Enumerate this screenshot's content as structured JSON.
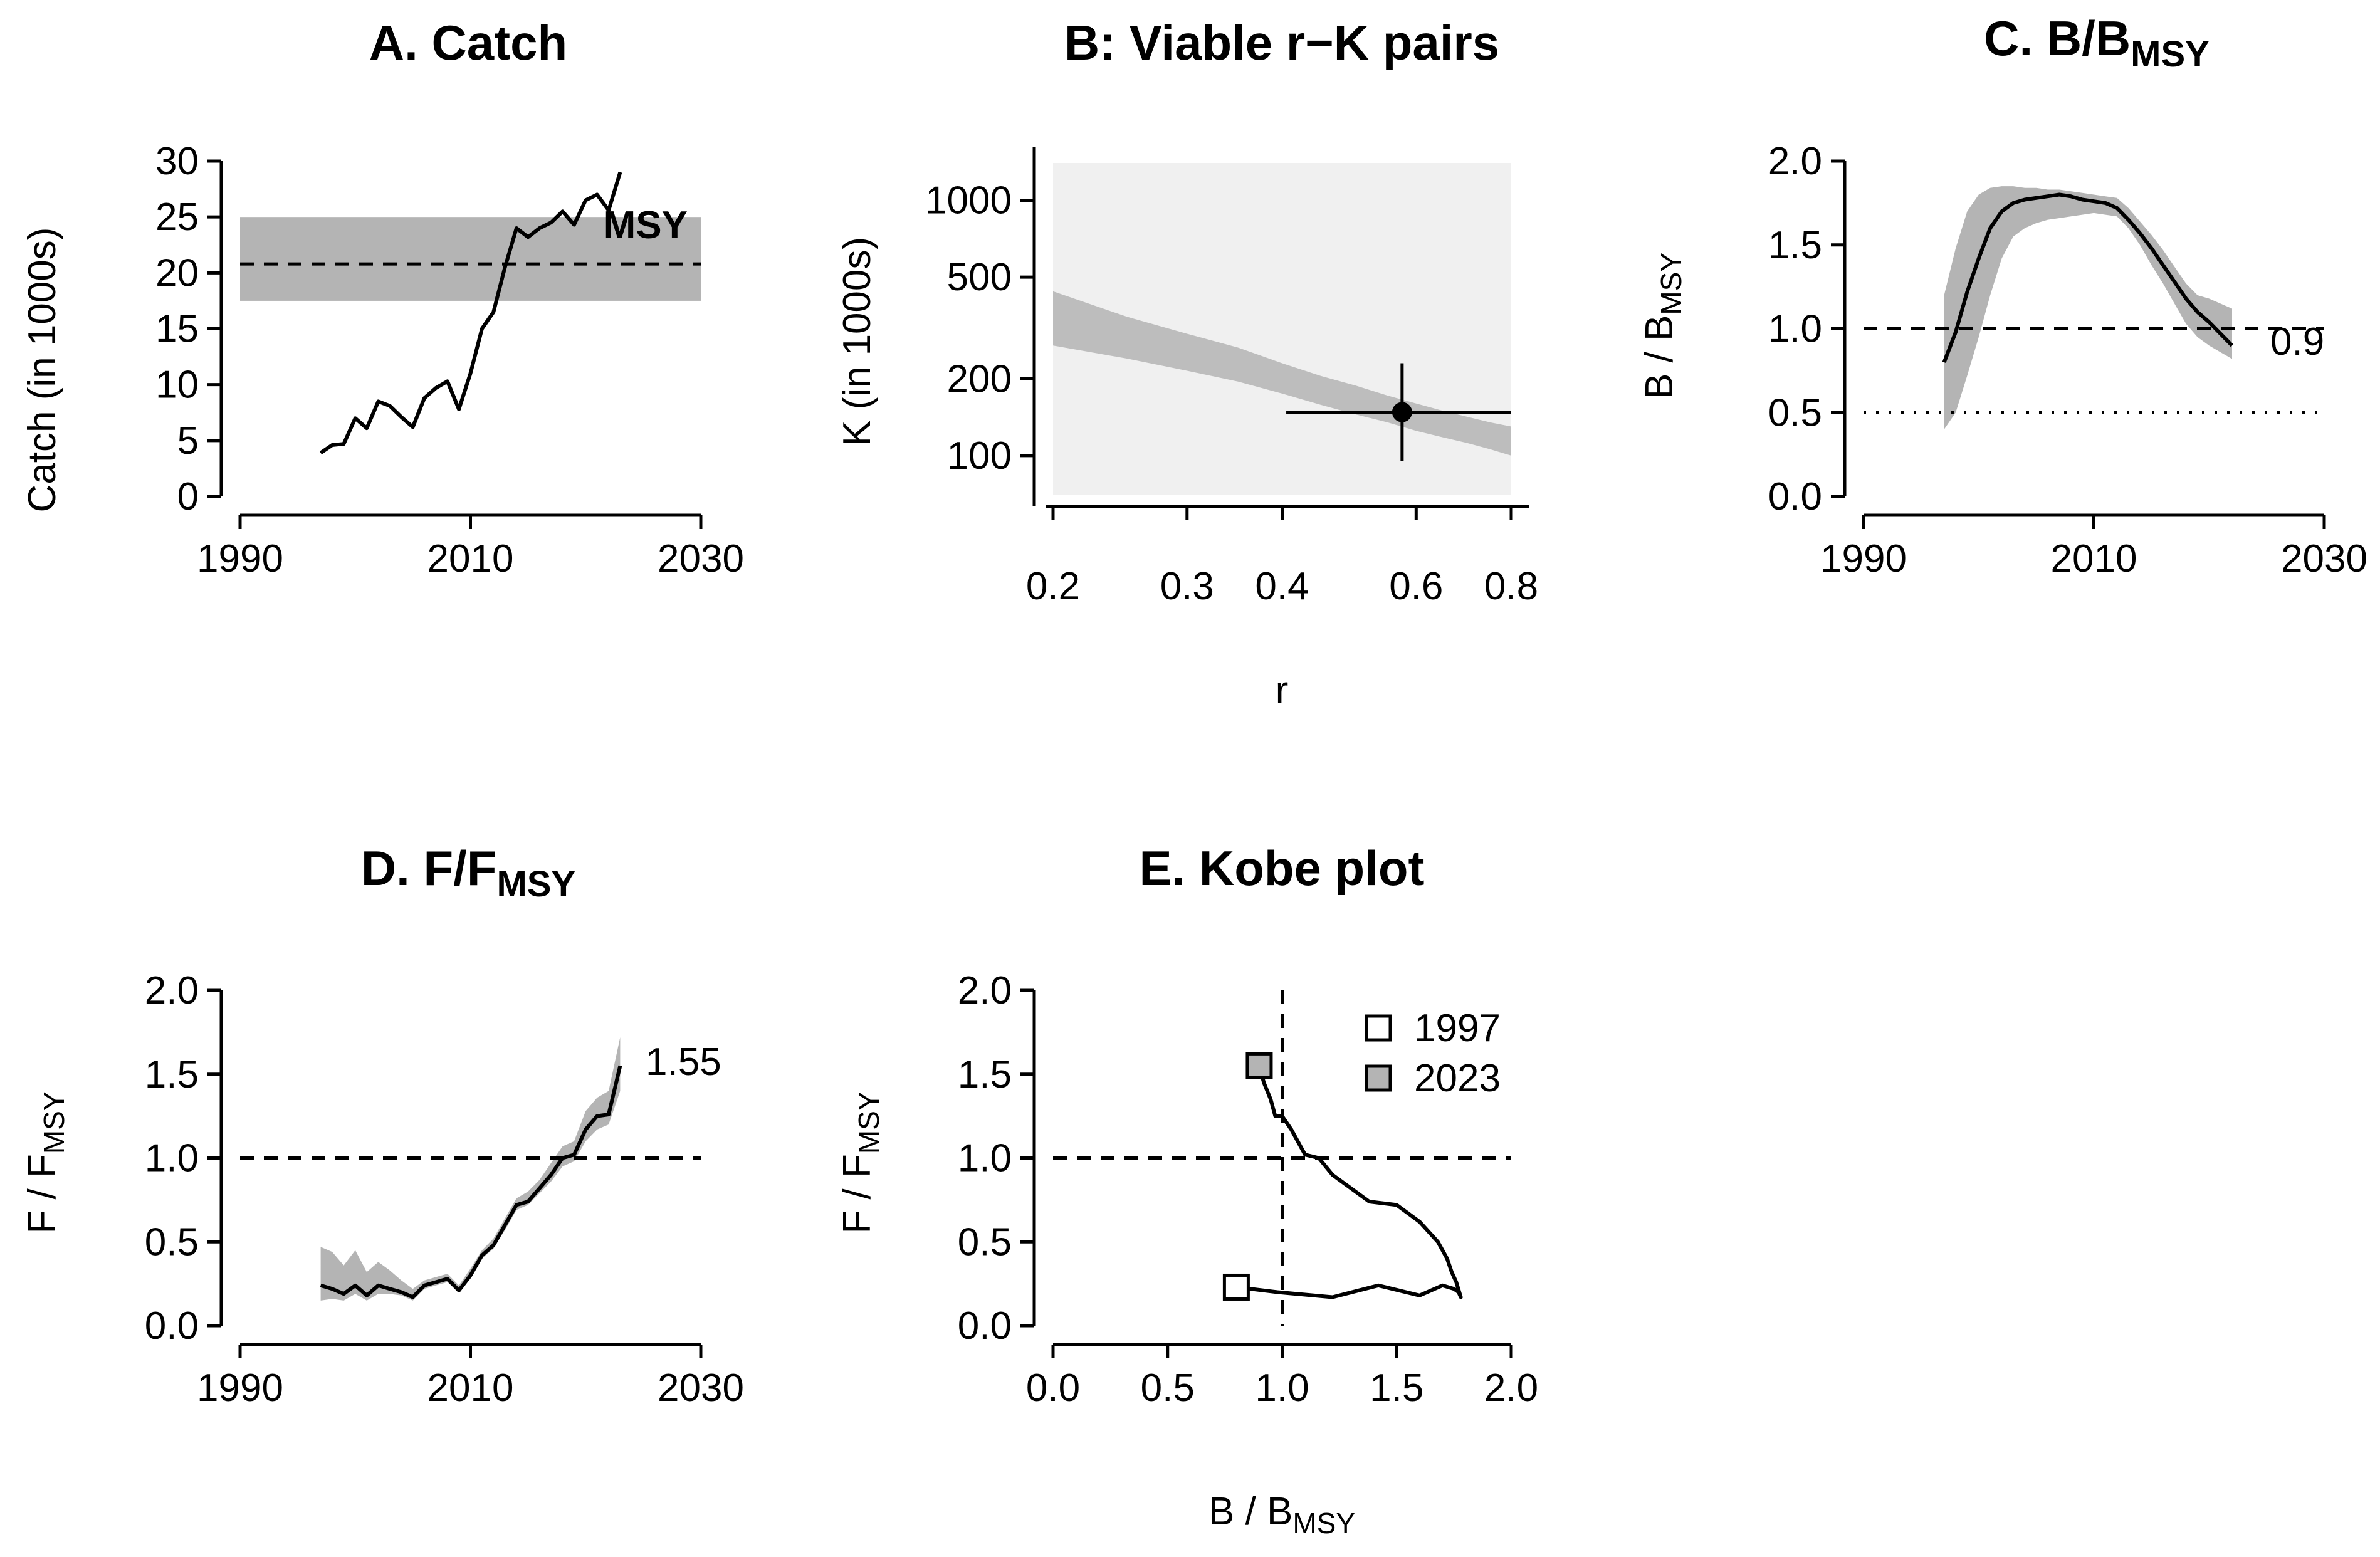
{
  "chart_data": [
    {
      "id": "A",
      "type": "line",
      "title": "A. Catch",
      "xlabel": "",
      "ylabel": "Catch (in 1000s)",
      "xlim": [
        1990,
        2030
      ],
      "ylim": [
        0,
        30
      ],
      "xticks": [
        1990,
        2010,
        2030
      ],
      "yticks": [
        0,
        5,
        10,
        15,
        20,
        25,
        30
      ],
      "x": [
        1997,
        1998,
        1999,
        2000,
        2001,
        2002,
        2003,
        2004,
        2005,
        2006,
        2007,
        2008,
        2009,
        2010,
        2011,
        2012,
        2013,
        2014,
        2015,
        2016,
        2017,
        2018,
        2019,
        2020,
        2021,
        2022,
        2023
      ],
      "values": [
        3.9,
        4.6,
        4.7,
        7.0,
        6.1,
        8.5,
        8.1,
        7.1,
        6.2,
        8.8,
        9.7,
        10.3,
        7.8,
        11.0,
        15.0,
        16.5,
        20.5,
        24.0,
        23.2,
        24.0,
        24.5,
        25.5,
        24.3,
        26.5,
        27.0,
        25.6,
        29.0
      ],
      "msy": 20.8,
      "msy_band": [
        17.5,
        25.0
      ],
      "msy_label": "MSY"
    },
    {
      "id": "B",
      "type": "scatter",
      "title": "B: Viable r−K pairs",
      "xlabel": "r",
      "ylabel": "K (in 1000s)",
      "xscale": "log",
      "yscale": "log",
      "xlim": [
        0.2,
        0.8
      ],
      "ylim": [
        70,
        1400
      ],
      "xticks": [
        0.2,
        0.3,
        0.4,
        0.6,
        0.8
      ],
      "yticks": [
        100,
        200,
        500,
        1000
      ],
      "prior_box": {
        "r": [
          0.2,
          0.8
        ],
        "k": [
          70,
          1400
        ]
      },
      "viable_pairs_band": {
        "r": [
          0.2,
          0.25,
          0.3,
          0.35,
          0.4,
          0.45,
          0.5,
          0.55,
          0.6,
          0.65,
          0.7,
          0.75,
          0.8
        ],
        "k_low": [
          270,
          240,
          215,
          195,
          175,
          158,
          145,
          135,
          125,
          118,
          112,
          106,
          100
        ],
        "k_high": [
          440,
          350,
          300,
          265,
          230,
          205,
          188,
          172,
          160,
          150,
          142,
          135,
          130
        ]
      },
      "best_estimate": {
        "r": 0.575,
        "k": 148,
        "r_ci": [
          0.405,
          0.8
        ],
        "k_ci": [
          95,
          230
        ]
      }
    },
    {
      "id": "C",
      "type": "line",
      "title": "C. B/B",
      "title_sub": "MSY",
      "xlabel": "",
      "ylabel": "B / B",
      "ylabel_sub": "MSY",
      "xlim": [
        1990,
        2030
      ],
      "ylim": [
        0,
        2
      ],
      "xticks": [
        1990,
        2010,
        2030
      ],
      "yticks": [
        "0.0",
        "0.5",
        "1.0",
        "1.5",
        "2.0"
      ],
      "x": [
        1997,
        1998,
        1999,
        2000,
        2001,
        2002,
        2003,
        2004,
        2005,
        2006,
        2007,
        2008,
        2009,
        2010,
        2011,
        2012,
        2013,
        2014,
        2015,
        2016,
        2017,
        2018,
        2019,
        2020,
        2021,
        2022
      ],
      "values": [
        0.8,
        0.98,
        1.22,
        1.42,
        1.6,
        1.7,
        1.75,
        1.77,
        1.78,
        1.79,
        1.8,
        1.79,
        1.77,
        1.76,
        1.75,
        1.72,
        1.65,
        1.57,
        1.48,
        1.38,
        1.28,
        1.18,
        1.1,
        1.04,
        0.97,
        0.9
      ],
      "lower": [
        0.4,
        0.5,
        0.72,
        0.95,
        1.2,
        1.42,
        1.55,
        1.6,
        1.63,
        1.65,
        1.66,
        1.67,
        1.68,
        1.69,
        1.68,
        1.67,
        1.6,
        1.5,
        1.38,
        1.27,
        1.15,
        1.03,
        0.95,
        0.9,
        0.86,
        0.82
      ],
      "upper": [
        1.2,
        1.48,
        1.7,
        1.8,
        1.84,
        1.85,
        1.85,
        1.84,
        1.84,
        1.83,
        1.83,
        1.82,
        1.81,
        1.8,
        1.79,
        1.78,
        1.72,
        1.64,
        1.56,
        1.47,
        1.37,
        1.27,
        1.2,
        1.18,
        1.15,
        1.12
      ],
      "ref_lines": [
        1.0,
        0.5
      ],
      "end_label": "0.9"
    },
    {
      "id": "D",
      "type": "line",
      "title": "D. F/F",
      "title_sub": "MSY",
      "xlabel": "",
      "ylabel": "F / F",
      "ylabel_sub": "MSY",
      "xlim": [
        1990,
        2030
      ],
      "ylim": [
        0,
        2
      ],
      "xticks": [
        1990,
        2010,
        2030
      ],
      "yticks": [
        "0.0",
        "0.5",
        "1.0",
        "1.5",
        "2.0"
      ],
      "x": [
        1997,
        1998,
        1999,
        2000,
        2001,
        2002,
        2003,
        2004,
        2005,
        2006,
        2007,
        2008,
        2009,
        2010,
        2011,
        2012,
        2013,
        2014,
        2015,
        2016,
        2017,
        2018,
        2019,
        2020,
        2021,
        2022,
        2023
      ],
      "values": [
        0.24,
        0.22,
        0.19,
        0.24,
        0.18,
        0.24,
        0.22,
        0.2,
        0.17,
        0.24,
        0.26,
        0.28,
        0.21,
        0.3,
        0.42,
        0.48,
        0.6,
        0.72,
        0.74,
        0.82,
        0.9,
        1.0,
        1.02,
        1.17,
        1.25,
        1.26,
        1.55
      ],
      "lower": [
        0.15,
        0.16,
        0.15,
        0.19,
        0.15,
        0.19,
        0.19,
        0.18,
        0.15,
        0.22,
        0.24,
        0.26,
        0.2,
        0.28,
        0.4,
        0.46,
        0.57,
        0.69,
        0.72,
        0.79,
        0.86,
        0.95,
        0.98,
        1.1,
        1.17,
        1.2,
        1.4
      ],
      "upper": [
        0.47,
        0.44,
        0.36,
        0.45,
        0.32,
        0.38,
        0.33,
        0.27,
        0.22,
        0.27,
        0.29,
        0.31,
        0.24,
        0.34,
        0.45,
        0.52,
        0.64,
        0.76,
        0.8,
        0.87,
        0.97,
        1.07,
        1.1,
        1.28,
        1.36,
        1.4,
        1.72
      ],
      "ref_lines": [
        1.0
      ],
      "end_label": "1.55"
    },
    {
      "id": "E",
      "type": "line",
      "title": "E. Kobe plot",
      "xlabel": "B / B",
      "xlabel_sub": "MSY",
      "ylabel": "F / F",
      "ylabel_sub": "MSY",
      "xlim": [
        0,
        2
      ],
      "ylim": [
        0,
        2
      ],
      "xticks": [
        "0.0",
        "0.5",
        "1.0",
        "1.5",
        "2.0"
      ],
      "yticks": [
        "0.0",
        "0.5",
        "1.0",
        "1.5",
        "2.0"
      ],
      "b": [
        0.8,
        0.98,
        1.22,
        1.42,
        1.6,
        1.7,
        1.75,
        1.77,
        1.78,
        1.76,
        1.74,
        1.72,
        1.68,
        1.6,
        1.5,
        1.38,
        1.3,
        1.22,
        1.16,
        1.1,
        1.04,
        1.0,
        0.97,
        0.95,
        0.92,
        0.9
      ],
      "f": [
        0.23,
        0.2,
        0.17,
        0.24,
        0.18,
        0.24,
        0.22,
        0.2,
        0.17,
        0.26,
        0.32,
        0.4,
        0.5,
        0.62,
        0.72,
        0.74,
        0.82,
        0.9,
        1.0,
        1.02,
        1.17,
        1.25,
        1.25,
        1.35,
        1.45,
        1.55
      ],
      "ref_b": 1.0,
      "ref_f": 1.0,
      "legend": [
        {
          "label": "1997",
          "fill": "#ffffff"
        },
        {
          "label": "2023",
          "fill": "#b4b4b4"
        }
      ],
      "legend_position": "top-right"
    }
  ]
}
